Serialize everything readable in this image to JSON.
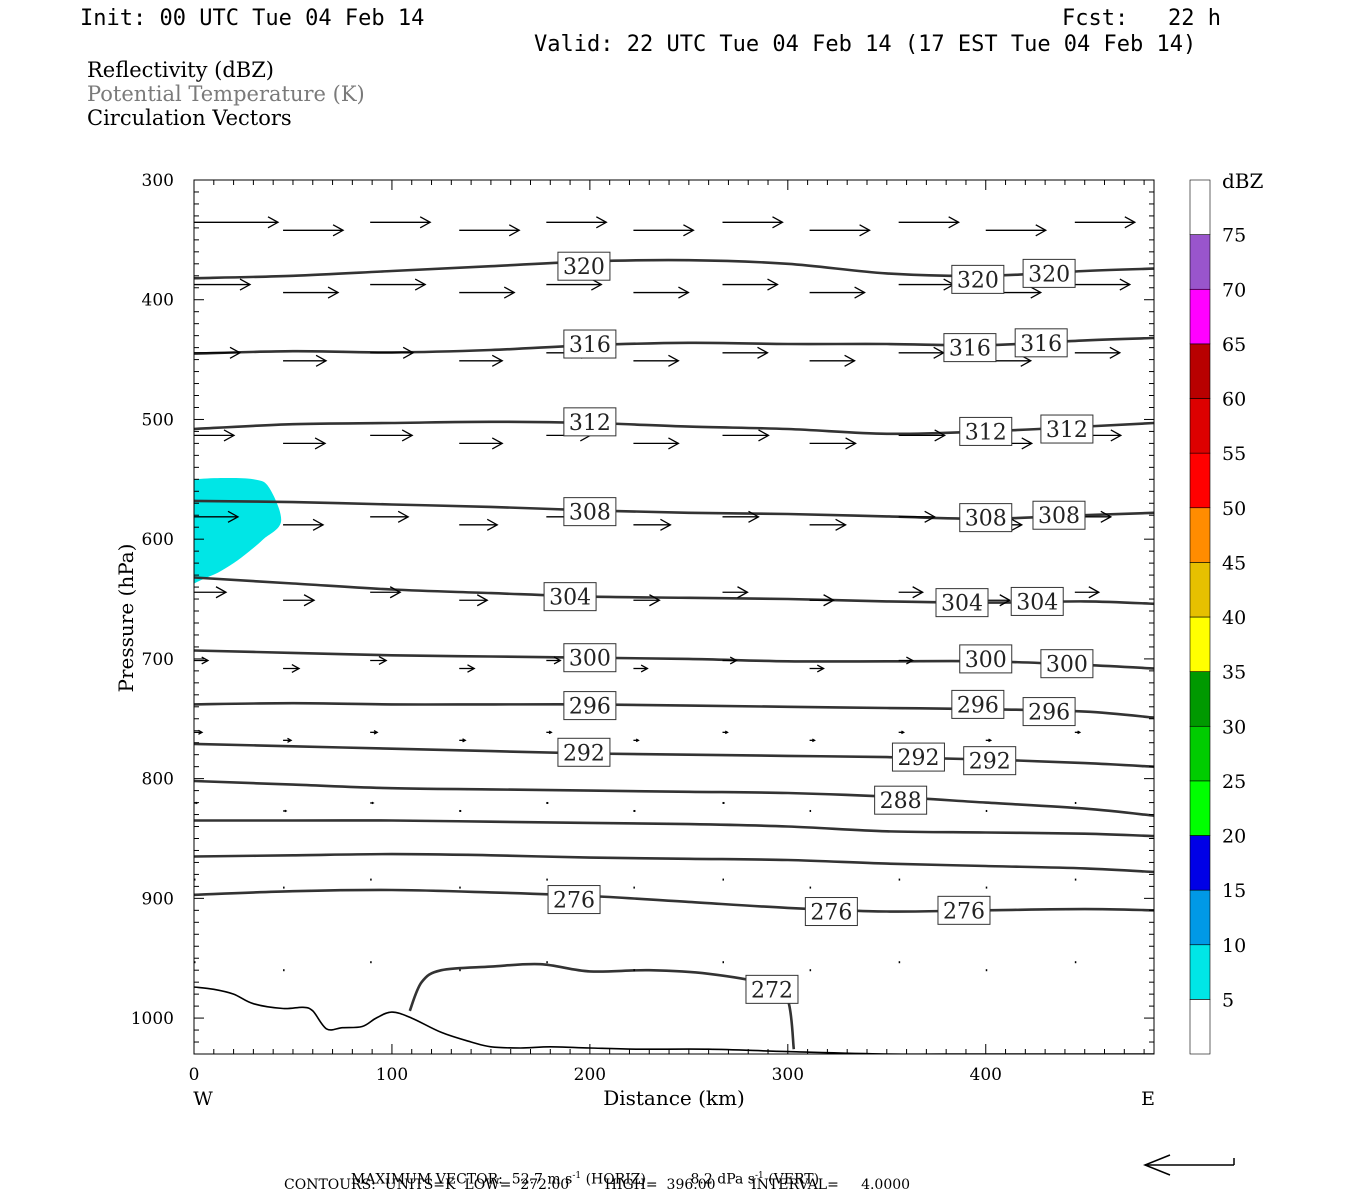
{
  "header": {
    "init": "Init: 00 UTC Tue 04 Feb 14",
    "fcst": "Fcst:   22 h",
    "valid": "Valid: 22 UTC Tue 04 Feb 14 (17 EST Tue 04 Feb 14)"
  },
  "fields": {
    "reflectivity": "Reflectivity (dBZ)",
    "potential_temperature": "Potential Temperature (K)",
    "circulation": "Circulation Vectors"
  },
  "footer": {
    "max_vector_label": "MAXIMUM VECTOR:",
    "max_horiz": "52.7 m s",
    "horiz_tag": "(HORIZ)",
    "max_vert": "8.2 dPa s",
    "vert_tag": "(VERT)",
    "sup": "-1",
    "contours_line": "CONTOURS:  UNITS=K  LOW=  272.00        HIGH=  396.00        INTERVAL=     4.0000"
  },
  "colors": {
    "contour": "#333333",
    "reflectivity_5": "#00e6e6"
  },
  "chart_data": {
    "type": "cross-section",
    "xlabel": "Distance (km)",
    "ylabel": "Pressure (hPa)",
    "xlim": [
      0,
      485
    ],
    "ylim": [
      300,
      1030
    ],
    "x_ticks": [
      0,
      100,
      200,
      300,
      400
    ],
    "y_ticks": [
      300,
      400,
      500,
      600,
      700,
      800,
      900,
      1000
    ],
    "x_end_labels": {
      "left": "W",
      "right": "E"
    },
    "colorbar": {
      "unit": "dBZ",
      "levels": [
        5,
        10,
        15,
        20,
        25,
        30,
        35,
        40,
        45,
        50,
        55,
        60,
        65,
        70,
        75
      ],
      "colors": [
        "#ffffff",
        "#00e6e6",
        "#0099e6",
        "#0000e6",
        "#00ff00",
        "#00cc00",
        "#009900",
        "#ffff00",
        "#e6c000",
        "#ff8c00",
        "#ff0000",
        "#dd0000",
        "#b80000",
        "#ff00ff",
        "#9955cc",
        "#ffffff"
      ]
    },
    "contours": [
      {
        "value": 320,
        "points": [
          [
            0,
            382
          ],
          [
            50,
            380
          ],
          [
            100,
            376
          ],
          [
            150,
            372
          ],
          [
            200,
            368
          ],
          [
            250,
            367
          ],
          [
            300,
            370
          ],
          [
            350,
            378
          ],
          [
            400,
            380
          ],
          [
            450,
            376
          ],
          [
            485,
            374
          ]
        ],
        "labels": [
          {
            "text": "320",
            "x": 197,
            "p": 372
          },
          {
            "text": "320",
            "x": 396,
            "p": 383
          },
          {
            "text": "320",
            "x": 432,
            "p": 378
          }
        ]
      },
      {
        "value": 316,
        "points": [
          [
            0,
            445
          ],
          [
            50,
            443
          ],
          [
            100,
            444
          ],
          [
            150,
            442
          ],
          [
            200,
            438
          ],
          [
            250,
            436
          ],
          [
            300,
            437
          ],
          [
            350,
            437
          ],
          [
            400,
            438
          ],
          [
            450,
            434
          ],
          [
            485,
            432
          ]
        ],
        "labels": [
          {
            "text": "316",
            "x": 200,
            "p": 437
          },
          {
            "text": "316",
            "x": 392,
            "p": 440
          },
          {
            "text": "316",
            "x": 428,
            "p": 436
          }
        ]
      },
      {
        "value": 312,
        "points": [
          [
            0,
            508
          ],
          [
            50,
            504
          ],
          [
            100,
            503
          ],
          [
            150,
            502
          ],
          [
            200,
            503
          ],
          [
            250,
            506
          ],
          [
            300,
            508
          ],
          [
            350,
            512
          ],
          [
            400,
            510
          ],
          [
            450,
            506
          ],
          [
            485,
            503
          ]
        ],
        "labels": [
          {
            "text": "312",
            "x": 200,
            "p": 502
          },
          {
            "text": "312",
            "x": 400,
            "p": 510
          },
          {
            "text": "312",
            "x": 441,
            "p": 508
          }
        ]
      },
      {
        "value": 308,
        "points": [
          [
            0,
            568
          ],
          [
            50,
            569
          ],
          [
            100,
            571
          ],
          [
            150,
            573
          ],
          [
            200,
            576
          ],
          [
            250,
            578
          ],
          [
            300,
            579
          ],
          [
            350,
            581
          ],
          [
            400,
            583
          ],
          [
            450,
            580
          ],
          [
            485,
            578
          ]
        ],
        "labels": [
          {
            "text": "308",
            "x": 200,
            "p": 577
          },
          {
            "text": "308",
            "x": 400,
            "p": 582
          },
          {
            "text": "308",
            "x": 437,
            "p": 580
          }
        ]
      },
      {
        "value": 304,
        "points": [
          [
            0,
            632
          ],
          [
            50,
            637
          ],
          [
            100,
            642
          ],
          [
            150,
            645
          ],
          [
            200,
            648
          ],
          [
            250,
            649
          ],
          [
            300,
            650
          ],
          [
            350,
            652
          ],
          [
            400,
            653
          ],
          [
            450,
            652
          ],
          [
            485,
            654
          ]
        ],
        "labels": [
          {
            "text": "304",
            "x": 190,
            "p": 648
          },
          {
            "text": "304",
            "x": 388,
            "p": 653
          },
          {
            "text": "304",
            "x": 426,
            "p": 652
          }
        ]
      },
      {
        "value": 300,
        "points": [
          [
            0,
            693
          ],
          [
            50,
            695
          ],
          [
            100,
            697
          ],
          [
            150,
            698
          ],
          [
            200,
            699
          ],
          [
            250,
            700
          ],
          [
            300,
            702
          ],
          [
            350,
            702
          ],
          [
            400,
            702
          ],
          [
            450,
            705
          ],
          [
            485,
            708
          ]
        ],
        "labels": [
          {
            "text": "300",
            "x": 200,
            "p": 699
          },
          {
            "text": "300",
            "x": 400,
            "p": 700
          },
          {
            "text": "300",
            "x": 441,
            "p": 704
          }
        ]
      },
      {
        "value": 296,
        "points": [
          [
            0,
            738
          ],
          [
            50,
            737
          ],
          [
            100,
            738
          ],
          [
            150,
            738
          ],
          [
            200,
            738
          ],
          [
            250,
            739
          ],
          [
            300,
            740
          ],
          [
            350,
            741
          ],
          [
            400,
            742
          ],
          [
            450,
            744
          ],
          [
            485,
            749
          ]
        ],
        "labels": [
          {
            "text": "296",
            "x": 200,
            "p": 739
          },
          {
            "text": "296",
            "x": 396,
            "p": 738
          },
          {
            "text": "296",
            "x": 432,
            "p": 744
          }
        ]
      },
      {
        "value": 292,
        "points": [
          [
            0,
            771
          ],
          [
            50,
            773
          ],
          [
            100,
            775
          ],
          [
            150,
            777
          ],
          [
            200,
            779
          ],
          [
            250,
            780
          ],
          [
            300,
            781
          ],
          [
            350,
            782
          ],
          [
            400,
            784
          ],
          [
            450,
            787
          ],
          [
            485,
            790
          ]
        ],
        "labels": [
          {
            "text": "292",
            "x": 197,
            "p": 778
          },
          {
            "text": "292",
            "x": 366,
            "p": 782
          },
          {
            "text": "292",
            "x": 402,
            "p": 785
          }
        ]
      },
      {
        "value": 288,
        "points": [
          [
            0,
            802
          ],
          [
            50,
            805
          ],
          [
            100,
            808
          ],
          [
            150,
            809
          ],
          [
            200,
            810
          ],
          [
            250,
            811
          ],
          [
            300,
            812
          ],
          [
            350,
            815
          ],
          [
            400,
            820
          ],
          [
            450,
            825
          ],
          [
            485,
            831
          ]
        ],
        "labels": [
          {
            "text": "288",
            "x": 357,
            "p": 818
          }
        ]
      },
      {
        "value": 284,
        "points": [
          [
            0,
            835
          ],
          [
            50,
            835
          ],
          [
            100,
            835
          ],
          [
            150,
            836
          ],
          [
            200,
            837
          ],
          [
            250,
            838
          ],
          [
            300,
            840
          ],
          [
            350,
            844
          ],
          [
            400,
            845
          ],
          [
            450,
            846
          ],
          [
            485,
            848
          ]
        ],
        "labels": []
      },
      {
        "value": 280,
        "points": [
          [
            0,
            865
          ],
          [
            50,
            864
          ],
          [
            100,
            863
          ],
          [
            150,
            864
          ],
          [
            200,
            866
          ],
          [
            250,
            867
          ],
          [
            300,
            868
          ],
          [
            350,
            871
          ],
          [
            400,
            873
          ],
          [
            450,
            875
          ],
          [
            485,
            878
          ]
        ],
        "labels": []
      },
      {
        "value": 276,
        "points": [
          [
            0,
            897
          ],
          [
            50,
            894
          ],
          [
            100,
            893
          ],
          [
            150,
            895
          ],
          [
            200,
            898
          ],
          [
            250,
            903
          ],
          [
            300,
            908
          ],
          [
            350,
            911
          ],
          [
            400,
            910
          ],
          [
            450,
            909
          ],
          [
            485,
            910
          ]
        ],
        "labels": [
          {
            "text": "276",
            "x": 192,
            "p": 901
          },
          {
            "text": "276",
            "x": 322,
            "p": 911
          },
          {
            "text": "276",
            "x": 389,
            "p": 910
          }
        ]
      },
      {
        "value": 272,
        "points": [
          [
            109,
            994
          ],
          [
            115,
            970
          ],
          [
            125,
            960
          ],
          [
            150,
            957
          ],
          [
            175,
            955
          ],
          [
            200,
            961
          ],
          [
            230,
            960
          ],
          [
            260,
            963
          ],
          [
            290,
            972
          ],
          [
            300,
            985
          ],
          [
            303,
            1026
          ]
        ],
        "labels": [
          {
            "text": "272",
            "x": 292,
            "p": 976
          }
        ]
      }
    ],
    "terrain": [
      [
        0,
        974
      ],
      [
        10,
        976
      ],
      [
        20,
        980
      ],
      [
        30,
        988
      ],
      [
        45,
        992
      ],
      [
        55,
        991
      ],
      [
        60,
        994
      ],
      [
        67,
        1009
      ],
      [
        75,
        1008
      ],
      [
        85,
        1007
      ],
      [
        92,
        1000
      ],
      [
        100,
        995
      ],
      [
        110,
        1000
      ],
      [
        125,
        1012
      ],
      [
        140,
        1020
      ],
      [
        150,
        1024
      ],
      [
        165,
        1025
      ],
      [
        180,
        1024
      ],
      [
        200,
        1025
      ],
      [
        225,
        1026
      ],
      [
        260,
        1026
      ],
      [
        300,
        1028
      ],
      [
        350,
        1030
      ],
      [
        400,
        1030
      ],
      [
        485,
        1030
      ]
    ],
    "reflectivity_area": {
      "level": 5,
      "points": [
        [
          0,
          550
        ],
        [
          12,
          549
        ],
        [
          30,
          550
        ],
        [
          38,
          557
        ],
        [
          44,
          585
        ],
        [
          35,
          600
        ],
        [
          28,
          610
        ],
        [
          20,
          620
        ],
        [
          12,
          628
        ],
        [
          5,
          633
        ],
        [
          0,
          637
        ]
      ]
    },
    "vectors": {
      "x_positions": [
        0,
        45,
        89,
        134,
        178,
        222,
        267,
        311,
        356,
        400,
        445
      ],
      "rows": [
        {
          "p": 337,
          "dx": [
            84,
            60,
            60,
            60,
            60,
            60,
            60,
            60,
            60,
            60,
            60
          ]
        },
        {
          "p": 389,
          "dx": [
            56,
            55,
            55,
            55,
            55,
            55,
            55,
            55,
            55,
            55,
            55
          ]
        },
        {
          "p": 446,
          "dx": [
            46,
            43,
            43,
            43,
            45,
            45,
            45,
            45,
            45,
            45,
            45
          ]
        },
        {
          "p": 515,
          "dx": [
            40,
            42,
            42,
            43,
            44,
            45,
            46,
            46,
            46,
            46,
            46
          ]
        },
        {
          "p": 583,
          "dx": [
            44,
            40,
            38,
            38,
            37,
            37,
            36,
            36,
            36,
            36,
            36
          ]
        },
        {
          "p": 646,
          "dx": [
            32,
            31,
            30,
            28,
            27,
            26,
            25,
            24,
            24,
            24,
            24
          ]
        },
        {
          "p": 703,
          "dx": [
            14,
            16,
            16,
            15,
            14,
            14,
            14,
            14,
            14,
            14,
            14
          ]
        },
        {
          "p": 763,
          "dx": [
            8,
            8,
            7,
            6,
            5,
            5,
            5,
            5,
            5,
            5,
            5
          ]
        },
        {
          "p": 822,
          "dx": [
            3,
            3,
            3,
            2,
            2,
            2,
            2,
            1,
            1,
            1,
            1
          ]
        },
        {
          "p": 886,
          "dx": [
            1,
            1,
            1,
            1,
            1,
            1,
            1,
            1,
            1,
            1,
            1
          ]
        },
        {
          "p": 955,
          "dx": [
            1,
            1,
            1,
            1,
            1,
            1,
            1,
            1,
            1,
            1,
            1
          ]
        }
      ]
    }
  }
}
